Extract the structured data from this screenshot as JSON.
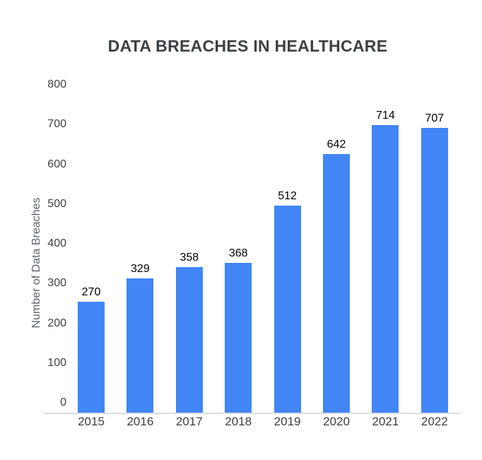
{
  "chart_data": {
    "type": "bar",
    "title": "DATA BREACHES IN HEALTHCARE",
    "ylabel": "Number of Data Breaches",
    "xlabel": "",
    "categories": [
      "2015",
      "2016",
      "2017",
      "2018",
      "2019",
      "2020",
      "2021",
      "2022"
    ],
    "values": [
      270,
      329,
      358,
      368,
      512,
      642,
      714,
      707
    ],
    "data_labels": [
      "270",
      "329",
      "358",
      "368",
      "512",
      "642",
      "714",
      "707"
    ],
    "y_ticks": [
      0,
      100,
      200,
      300,
      400,
      500,
      600,
      700,
      800
    ],
    "ylim": [
      0,
      800
    ],
    "grid": "off",
    "legend": "none",
    "colors": {
      "bar": "#4285f4",
      "title_text": "#3c4043",
      "axis_tick_text": "#3c4043",
      "value_label_text": "#000000",
      "y_axis_title_text": "#5f6368",
      "axis_line": "#dadce0",
      "background": "#ffffff"
    }
  }
}
